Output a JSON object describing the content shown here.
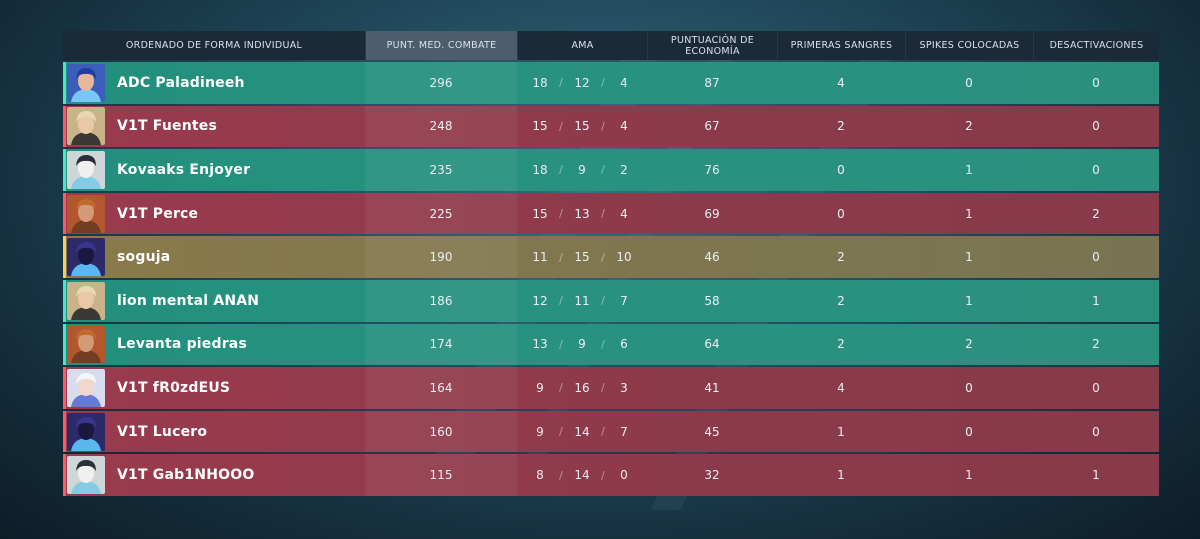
{
  "header": {
    "sort_label": "ORDENADO DE FORMA INDIVIDUAL",
    "acs_label": "PUNT. MED. COMBATE",
    "kda_label": "AMA",
    "eco_label": "PUNTUACIÓN DE ECONOMÍA",
    "fb_label": "PRIMERAS SANGRES",
    "spikes_label": "SPIKES COLOCADAS",
    "defuse_label": "DESACTIVACIONES"
  },
  "team_colors": {
    "teal": "#22907e",
    "red": "#9a3a4d",
    "gold": "#8a7a4a"
  },
  "players": [
    {
      "name": "ADC Paladineeh",
      "team": "teal",
      "agent_icon": "neon-avatar-icon",
      "acs": "296",
      "k": "18",
      "d": "12",
      "a": "4",
      "eco": "87",
      "fb": "4",
      "spikes": "0",
      "defuses": "0"
    },
    {
      "name": "V1T Fuentes",
      "team": "red",
      "agent_icon": "chamber-avatar-icon",
      "acs": "248",
      "k": "15",
      "d": "15",
      "a": "4",
      "eco": "67",
      "fb": "2",
      "spikes": "2",
      "defuses": "0"
    },
    {
      "name": "Kovaaks Enjoyer",
      "team": "teal",
      "agent_icon": "cypher-avatar-icon",
      "acs": "235",
      "k": "18",
      "d": "9",
      "a": "2",
      "eco": "76",
      "fb": "0",
      "spikes": "1",
      "defuses": "0"
    },
    {
      "name": "V1T Perce",
      "team": "red",
      "agent_icon": "breach-avatar-icon",
      "acs": "225",
      "k": "15",
      "d": "13",
      "a": "4",
      "eco": "69",
      "fb": "0",
      "spikes": "1",
      "defuses": "2"
    },
    {
      "name": "soguja",
      "team": "gold",
      "agent_icon": "omen-avatar-icon",
      "acs": "190",
      "k": "11",
      "d": "15",
      "a": "10",
      "eco": "46",
      "fb": "2",
      "spikes": "1",
      "defuses": "0"
    },
    {
      "name": "lion mental ANAN",
      "team": "teal",
      "agent_icon": "chamber-avatar-icon",
      "acs": "186",
      "k": "12",
      "d": "11",
      "a": "7",
      "eco": "58",
      "fb": "2",
      "spikes": "1",
      "defuses": "1"
    },
    {
      "name": "Levanta piedras",
      "team": "teal",
      "agent_icon": "breach-avatar-icon",
      "acs": "174",
      "k": "13",
      "d": "9",
      "a": "6",
      "eco": "64",
      "fb": "2",
      "spikes": "2",
      "defuses": "2"
    },
    {
      "name": "V1T fR0zdEUS",
      "team": "red",
      "agent_icon": "jett-avatar-icon",
      "acs": "164",
      "k": "9",
      "d": "16",
      "a": "3",
      "eco": "41",
      "fb": "4",
      "spikes": "0",
      "defuses": "0"
    },
    {
      "name": "V1T Lucero",
      "team": "red",
      "agent_icon": "omen-avatar-icon",
      "acs": "160",
      "k": "9",
      "d": "14",
      "a": "7",
      "eco": "45",
      "fb": "1",
      "spikes": "0",
      "defuses": "0"
    },
    {
      "name": "V1T Gab1NHOOO",
      "team": "red",
      "agent_icon": "cypher-avatar-icon",
      "acs": "115",
      "k": "8",
      "d": "14",
      "a": "0",
      "eco": "32",
      "fb": "1",
      "spikes": "1",
      "defuses": "1"
    }
  ]
}
